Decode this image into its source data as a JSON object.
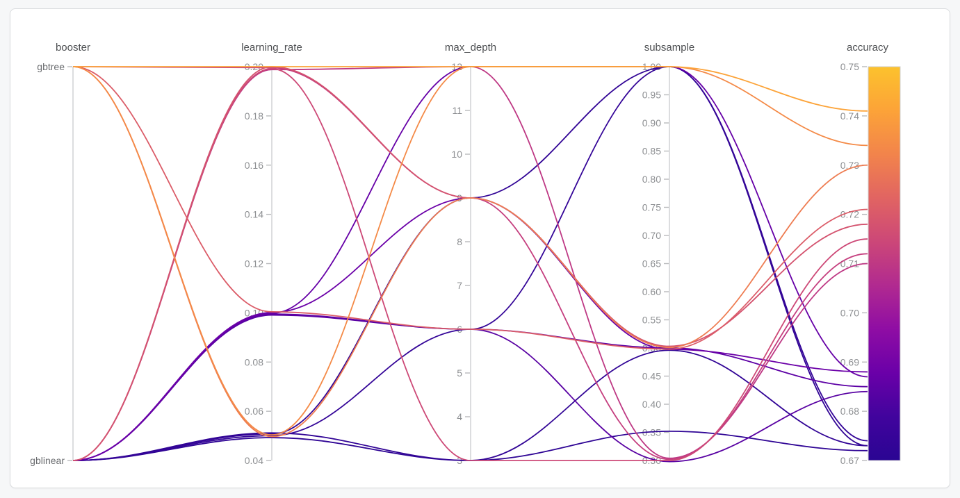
{
  "page": {
    "background_color": "#f6f7f8",
    "card_background": "#ffffff",
    "card_border_color": "#dadcde"
  },
  "chart_data": {
    "type": "parallel-coordinates",
    "color_by": "accuracy",
    "color_range": [
      0.67,
      0.75
    ],
    "colormap": {
      "name": "plasma",
      "stops_top_to_bottom": [
        "#fcc22d",
        "#fca338",
        "#f2844b",
        "#e16462",
        "#cc4778",
        "#b12a90",
        "#8f0da4",
        "#6a00a8",
        "#41049d",
        "#2a0593"
      ]
    },
    "axes": [
      {
        "name": "booster",
        "type": "categorical",
        "categories": [
          "gbtree",
          "gblinear"
        ]
      },
      {
        "name": "learning_rate",
        "type": "numeric",
        "max": 0.2,
        "min": 0.04,
        "tick_labels": [
          "0.20",
          "0.18",
          "0.16",
          "0.14",
          "0.12",
          "0.10",
          "0.08",
          "0.06",
          "0.04"
        ]
      },
      {
        "name": "max_depth",
        "type": "numeric",
        "max": 12,
        "min": 3,
        "tick_labels": [
          "12",
          "11",
          "10",
          "9",
          "8",
          "7",
          "6",
          "5",
          "4",
          "3"
        ]
      },
      {
        "name": "subsample",
        "type": "numeric",
        "max": 1.0,
        "min": 0.3,
        "tick_labels": [
          "1.00",
          "0.95",
          "0.90",
          "0.85",
          "0.80",
          "0.75",
          "0.70",
          "0.65",
          "0.60",
          "0.55",
          "0.50",
          "0.45",
          "0.40",
          "0.35",
          "0.30"
        ]
      },
      {
        "name": "accuracy",
        "type": "numeric",
        "max": 0.75,
        "min": 0.67,
        "tick_labels": [
          "0.75",
          "0.74",
          "0.73",
          "0.72",
          "0.71",
          "0.70",
          "0.69",
          "0.68",
          "0.67"
        ],
        "colorbar": true
      }
    ],
    "trials": [
      {
        "booster": "gbtree",
        "learning_rate": 0.2,
        "max_depth": 12,
        "subsample": 1.0,
        "accuracy": 0.741
      },
      {
        "booster": "gbtree",
        "learning_rate": 0.0504,
        "max_depth": 12,
        "subsample": 1.0,
        "accuracy": 0.734
      },
      {
        "booster": "gbtree",
        "learning_rate": 0.0497,
        "max_depth": 9,
        "subsample": 0.501,
        "accuracy": 0.73
      },
      {
        "booster": "gbtree",
        "learning_rate": 0.1004,
        "max_depth": 6,
        "subsample": 0.498,
        "accuracy": 0.721
      },
      {
        "booster": "gbtree",
        "learning_rate": 0.1996,
        "max_depth": 9,
        "subsample": 0.302,
        "accuracy": 0.712
      },
      {
        "booster": "gblinear",
        "learning_rate": 0.2,
        "max_depth": 9,
        "subsample": 0.503,
        "accuracy": 0.718
      },
      {
        "booster": "gblinear",
        "learning_rate": 0.1992,
        "max_depth": 3,
        "subsample": 0.3,
        "accuracy": 0.715
      },
      {
        "booster": "gblinear",
        "learning_rate": 0.0998,
        "max_depth": 12,
        "subsample": 1.0,
        "accuracy": 0.687
      },
      {
        "booster": "gblinear",
        "learning_rate": 0.1988,
        "max_depth": 12,
        "subsample": 0.304,
        "accuracy": 0.71
      },
      {
        "booster": "gblinear",
        "learning_rate": 0.1001,
        "max_depth": 9,
        "subsample": 0.4975,
        "accuracy": 0.688
      },
      {
        "booster": "gblinear",
        "learning_rate": 0.0995,
        "max_depth": 6,
        "subsample": 0.5,
        "accuracy": 0.685
      },
      {
        "booster": "gblinear",
        "learning_rate": 0.0991,
        "max_depth": 6,
        "subsample": 0.298,
        "accuracy": 0.684
      },
      {
        "booster": "gblinear",
        "learning_rate": 0.0501,
        "max_depth": 6,
        "subsample": 1.0,
        "accuracy": 0.674
      },
      {
        "booster": "gblinear",
        "learning_rate": 0.0508,
        "max_depth": 9,
        "subsample": 1.0,
        "accuracy": 0.673
      },
      {
        "booster": "gblinear",
        "learning_rate": 0.0493,
        "max_depth": 3,
        "subsample": 0.352,
        "accuracy": 0.672
      },
      {
        "booster": "gblinear",
        "learning_rate": 0.0512,
        "max_depth": 3,
        "subsample": 0.496,
        "accuracy": 0.673
      }
    ]
  }
}
